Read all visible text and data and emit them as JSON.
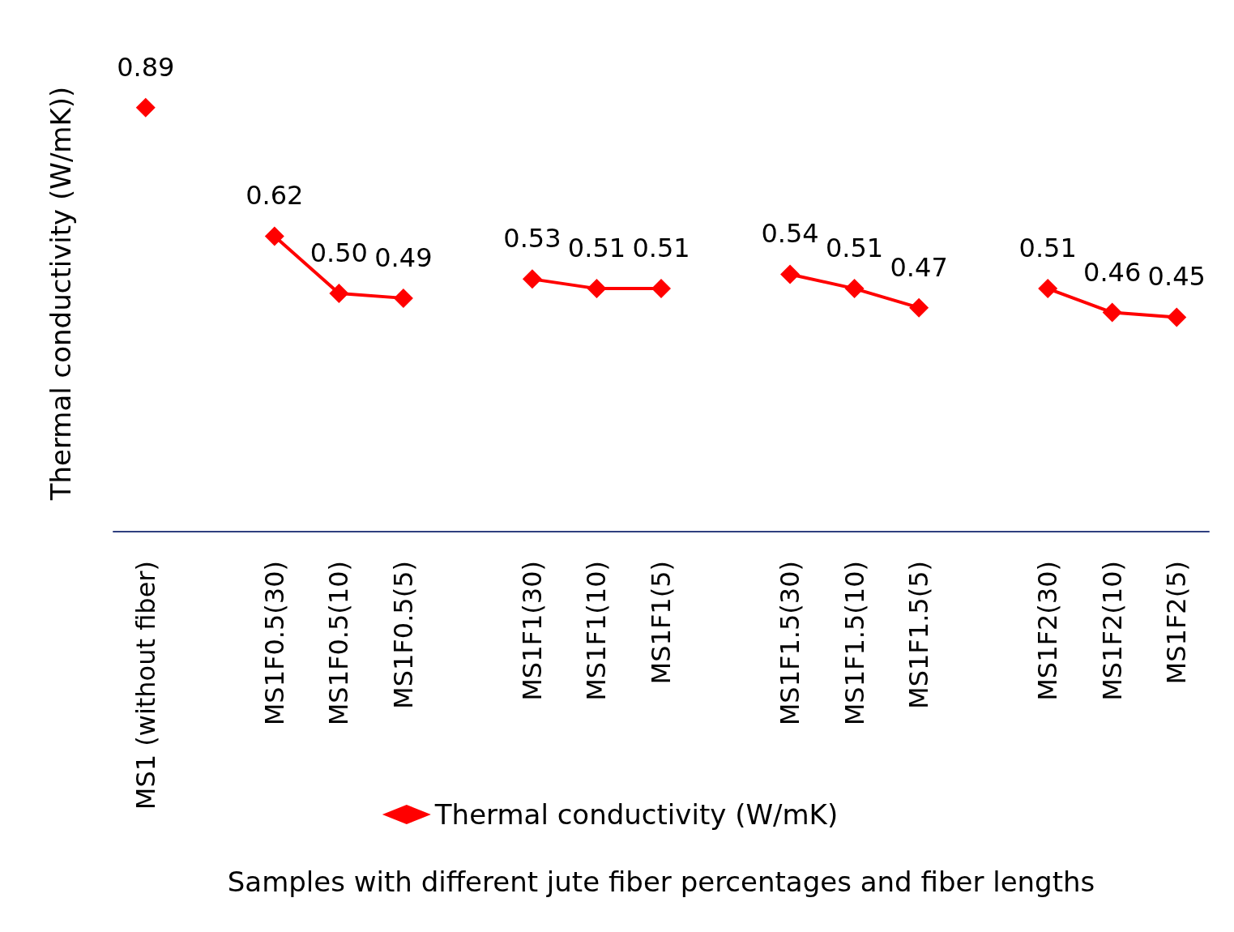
{
  "chart_data": {
    "type": "line",
    "xlabel": "Samples with different jute fiber percentages and fiber lengths",
    "ylabel": "Thermal conductivity (W/mK))",
    "categories": [
      "MS1 (without fiber)",
      null,
      "MS1F0.5(30)",
      "MS1F0.5(10)",
      "MS1F0.5(5)",
      null,
      "MS1F1(30)",
      "MS1F1(10)",
      "MS1F1(5)",
      null,
      "MS1F1.5(30)",
      "MS1F1.5(10)",
      "MS1F1.5(5)",
      null,
      "MS1F2(30)",
      "MS1F2(10)",
      "MS1F2(5)"
    ],
    "series": [
      {
        "name": "Thermal conductivity (W/mK)",
        "color": "#ff0000",
        "values": [
          0.89,
          null,
          0.62,
          0.5,
          0.49,
          null,
          0.53,
          0.51,
          0.51,
          null,
          0.54,
          0.51,
          0.47,
          null,
          0.51,
          0.46,
          0.45
        ],
        "value_labels": [
          "0.89",
          null,
          "0.62",
          "0.50",
          "0.49",
          null,
          "0.53",
          "0.51",
          "0.51",
          null,
          "0.54",
          "0.51",
          "0.47",
          null,
          "0.51",
          "0.46",
          "0.45"
        ]
      }
    ],
    "marker": "diamond",
    "line_style": "solid",
    "legend": "bottom",
    "grid": false,
    "tick_labels": "x"
  }
}
